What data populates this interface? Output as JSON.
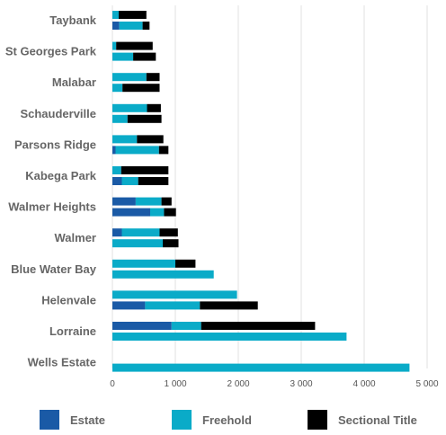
{
  "chart_data": {
    "type": "bar",
    "orientation": "horizontal",
    "stacked": true,
    "categories": [
      "Taybank",
      "St Georges Park",
      "Malabar",
      "Schauderville",
      "Parsons Ridge",
      "Kabega Park",
      "Walmer Heights",
      "Walmer",
      "Blue Water Bay",
      "Helenvale",
      "Lorraine",
      "Wells Estate"
    ],
    "series": [
      {
        "name": "Estate",
        "color": "#1a5aa6",
        "values_top": [
          0,
          0,
          0,
          0,
          0,
          0,
          370,
          150,
          0,
          0,
          940,
          null
        ],
        "values_bottom": [
          110,
          0,
          0,
          0,
          50,
          150,
          600,
          0,
          0,
          520,
          0,
          0
        ]
      },
      {
        "name": "Freehold",
        "color": "#0aabc8",
        "values_top": [
          100,
          60,
          540,
          550,
          390,
          140,
          410,
          600,
          1000,
          1980,
          470,
          null
        ],
        "values_bottom": [
          370,
          330,
          160,
          240,
          690,
          260,
          220,
          800,
          1610,
          870,
          3720,
          4720
        ]
      },
      {
        "name": "Sectional Title",
        "color": "#000000",
        "values_top": [
          440,
          580,
          210,
          220,
          420,
          750,
          160,
          290,
          320,
          0,
          1810,
          null
        ],
        "values_bottom": [
          110,
          360,
          590,
          540,
          150,
          480,
          190,
          250,
          0,
          920,
          0,
          0
        ]
      }
    ],
    "xlim": [
      0,
      5000
    ],
    "xticks": [
      0,
      1000,
      2000,
      3000,
      4000,
      5000
    ],
    "xtick_labels": [
      "0",
      "1 000",
      "2 000",
      "3 000",
      "4 000",
      "5 000"
    ],
    "grid": true,
    "legend_position": "bottom"
  },
  "legend": {
    "estate_label": "Estate",
    "freehold_label": "Freehold",
    "sectional_label": "Sectional Title"
  }
}
